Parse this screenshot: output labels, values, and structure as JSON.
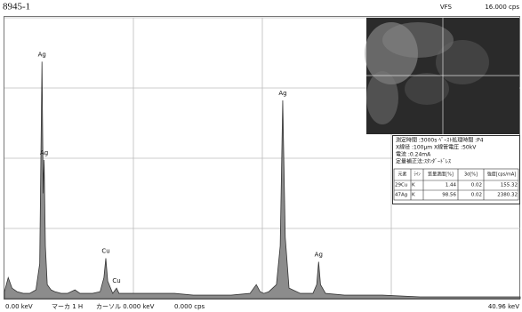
{
  "header": {
    "sample": "8945-1",
    "mode": "VFS"
  },
  "chart_data": {
    "type": "area",
    "color": "#8c8c8c",
    "line_color": "#333333",
    "grid": true,
    "xlim": [
      0,
      40.96
    ],
    "ylim": [
      0,
      16
    ],
    "xticks": [
      {
        "value": 0,
        "label": "0.00 keV"
      },
      {
        "value": 40.96,
        "label": "40.96 keV"
      }
    ],
    "yticks": [
      {
        "value": 16,
        "label": "16.000 cps"
      }
    ],
    "x": [
      0,
      0.3,
      0.6,
      1.0,
      1.5,
      2.0,
      2.5,
      2.8,
      2.98,
      3.08,
      3.15,
      3.25,
      3.4,
      3.7,
      4.0,
      4.5,
      5.0,
      5.6,
      6.0,
      6.4,
      7.0,
      7.6,
      7.9,
      8.05,
      8.2,
      8.6,
      8.9,
      9.1,
      9.5,
      10.5,
      12,
      13.5,
      15,
      16.5,
      18,
      19.5,
      20.0,
      20.3,
      20.6,
      21,
      21.6,
      21.9,
      22.1,
      22.3,
      22.6,
      23.5,
      24.5,
      24.8,
      24.95,
      25.1,
      25.5,
      27,
      30,
      33,
      36,
      39,
      40.96
    ],
    "values": [
      0.4,
      1.2,
      0.6,
      0.4,
      0.3,
      0.3,
      0.5,
      2,
      13.5,
      6,
      7.9,
      3,
      0.8,
      0.5,
      0.4,
      0.3,
      0.3,
      0.5,
      0.3,
      0.3,
      0.3,
      0.4,
      1.2,
      2.3,
      1.0,
      0.3,
      0.6,
      0.3,
      0.3,
      0.3,
      0.3,
      0.3,
      0.2,
      0.2,
      0.2,
      0.3,
      0.8,
      0.4,
      0.3,
      0.4,
      0.8,
      3,
      11.3,
      3.5,
      0.6,
      0.3,
      0.3,
      0.8,
      2.1,
      0.8,
      0.3,
      0.2,
      0.2,
      0.1,
      0.1,
      0.1,
      0.1
    ],
    "annotations": [
      "Ag",
      "Ag",
      "Cu",
      "Cu",
      "Ag",
      "Ag"
    ]
  },
  "footer": {
    "marker": "マーカ 1 H",
    "cursor": "カーソル 0.000 keV",
    "cursor_value": "0.000 cps"
  },
  "info": {
    "lines": [
      "測定時間 :3000s ﾍﾟｰｽﾄ処理時間 :P4",
      "X線径 :100μm X線管電圧 :50kV",
      "電流 :0.24mA",
      "定量補正法:ｽﾀﾝﾀﾞｰﾄﾞﾚｽ"
    ],
    "table": {
      "header": [
        "元素",
        "ﾗｲﾝ",
        "質量濃度[%]",
        "3σ[%]",
        "強度[cps/mA]"
      ],
      "rows": [
        [
          "29Cu",
          "K",
          "1.44",
          "0.02",
          "155.32"
        ],
        [
          "47Ag",
          "K",
          "98.56",
          "0.02",
          "2380.32"
        ]
      ]
    }
  }
}
